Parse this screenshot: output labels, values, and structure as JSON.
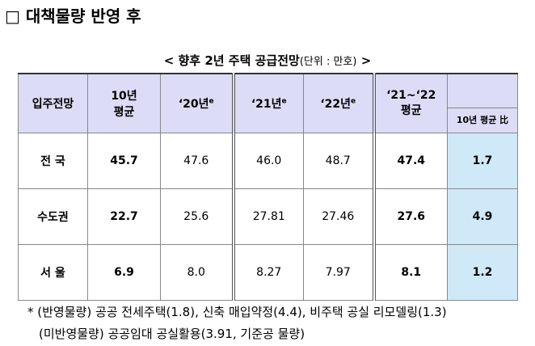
{
  "header": {
    "title": "□ 대책물량 반영 후"
  },
  "table": {
    "caption": {
      "main": "< 향후 2년 주택 공급전망",
      "unit": "(단위 : 만호)",
      "end": ">"
    },
    "columns": [
      {
        "label": "입주전망"
      },
      {
        "label": "10년\n평균"
      },
      {
        "label": "‘20년",
        "sup": "e"
      },
      {
        "label": "‘21년",
        "sup": "e"
      },
      {
        "label": "‘22년",
        "sup": "e"
      },
      {
        "label": "‘21~‘22\n평균"
      },
      {
        "label": "10년 평균 比"
      }
    ],
    "rows": [
      [
        "전 국",
        "45.7",
        "47.6",
        "46.0",
        "48.7",
        "47.4",
        "1.7"
      ],
      [
        "수도권",
        "22.7",
        "25.6",
        "27.81",
        "27.46",
        "27.6",
        "4.9"
      ],
      [
        "서 울",
        "6.9",
        "8.0",
        "8.27",
        "7.97",
        "8.1",
        "1.2"
      ]
    ]
  },
  "footnotes": [
    "*  (반영물량) 공공 전세주택(1.8), 신축 매입약정(4.4), 비주택 공실 리모델링(1.3)",
    "(미반영물량) 공공임대 공실활용(3.91, 기준공 물량)"
  ]
}
